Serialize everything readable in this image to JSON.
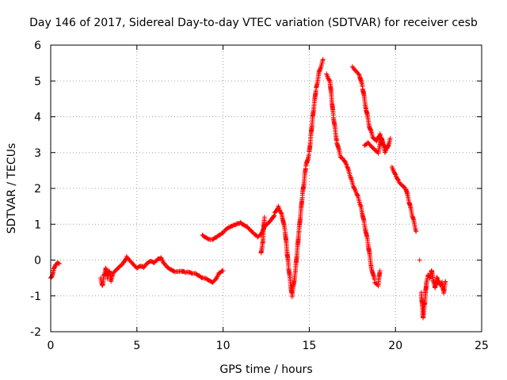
{
  "chart_data": {
    "type": "scatter",
    "title": "Day 146 of 2017, Sidereal Day-to-day VTEC variation (SDTVAR) for receiver cesb",
    "xlabel": "GPS time / hours",
    "ylabel": "SDTVAR / TECUs",
    "xlim": [
      0,
      25
    ],
    "ylim": [
      -2,
      6
    ],
    "xticks": [
      0,
      5,
      10,
      15,
      20,
      25
    ],
    "yticks": [
      -2,
      -1,
      0,
      1,
      2,
      3,
      4,
      5,
      6
    ],
    "grid": true,
    "legend": "none",
    "marker": "plus",
    "series_color": "#ff0000",
    "series": [
      {
        "segments": [
          {
            "x": [
              0.0,
              0.1,
              0.2,
              0.3,
              0.4,
              0.5
            ],
            "y": [
              -0.5,
              -0.4,
              -0.2,
              -0.1,
              -0.05,
              -0.1
            ]
          },
          {
            "x": [
              2.9,
              3.0,
              3.1,
              3.2,
              3.3,
              3.4,
              3.5,
              3.6,
              3.8,
              4.0,
              4.2,
              4.4,
              4.6,
              4.8,
              5.0,
              5.2,
              5.4,
              5.6,
              5.8,
              6.0,
              6.2,
              6.4,
              6.6,
              6.8,
              7.0,
              7.2,
              7.4,
              7.6,
              7.8,
              8.0,
              8.2,
              8.4,
              8.6,
              8.8,
              9.0,
              9.2,
              9.4,
              9.6,
              9.8,
              10.0
            ],
            "y": [
              -0.5,
              -0.7,
              -0.4,
              -0.2,
              -0.5,
              -0.3,
              -0.6,
              -0.4,
              -0.3,
              -0.2,
              -0.1,
              0.1,
              0.0,
              -0.1,
              -0.2,
              -0.15,
              -0.2,
              -0.1,
              -0.05,
              -0.1,
              0.0,
              0.05,
              -0.1,
              -0.2,
              -0.25,
              -0.3,
              -0.3,
              -0.3,
              -0.35,
              -0.35,
              -0.4,
              -0.4,
              -0.45,
              -0.5,
              -0.5,
              -0.55,
              -0.6,
              -0.5,
              -0.35,
              -0.3
            ]
          },
          {
            "x": [
              8.8,
              9.0,
              9.2,
              9.4,
              9.6,
              9.8,
              10.0,
              10.2,
              10.4,
              10.6,
              10.8,
              11.0,
              11.2,
              11.4,
              11.6,
              11.8,
              12.0,
              12.2,
              12.4,
              12.6,
              12.8,
              13.0,
              13.2,
              13.4,
              13.6,
              13.8,
              14.0,
              14.2,
              14.4,
              14.6,
              14.8,
              15.0,
              15.2,
              15.4,
              15.6,
              15.8
            ],
            "y": [
              0.7,
              0.65,
              0.6,
              0.6,
              0.65,
              0.7,
              0.75,
              0.85,
              0.9,
              0.95,
              1.0,
              1.05,
              1.0,
              0.95,
              0.85,
              0.75,
              0.65,
              0.7,
              0.9,
              1.0,
              1.1,
              1.3,
              1.5,
              1.3,
              0.8,
              -0.2,
              -1.0,
              -0.3,
              0.8,
              1.8,
              2.6,
              3.0,
              4.0,
              4.8,
              5.3,
              5.6
            ]
          },
          {
            "x": [
              12.2,
              12.3,
              12.4
            ],
            "y": [
              0.2,
              0.5,
              1.2
            ]
          },
          {
            "x": [
              16.0,
              16.2,
              16.4,
              16.6,
              16.8,
              17.0,
              17.2,
              17.4,
              17.6,
              17.8,
              18.0,
              18.2,
              18.4,
              18.6,
              18.8,
              19.0,
              19.1
            ],
            "y": [
              5.2,
              5.0,
              4.0,
              3.3,
              2.9,
              2.8,
              2.6,
              2.3,
              2.0,
              1.8,
              1.5,
              1.0,
              0.5,
              -0.2,
              -0.6,
              -0.7,
              -0.3
            ]
          },
          {
            "x": [
              17.5,
              17.7,
              17.9,
              18.1,
              18.3,
              18.5,
              18.7,
              18.9,
              19.1,
              19.3,
              19.5,
              19.7
            ],
            "y": [
              5.4,
              5.3,
              5.2,
              4.8,
              4.2,
              3.7,
              3.4,
              3.3,
              3.5,
              3.2,
              3.1,
              3.4
            ]
          },
          {
            "x": [
              18.2,
              18.4,
              18.6,
              18.8,
              19.0,
              19.2,
              19.4,
              19.6
            ],
            "y": [
              3.2,
              3.3,
              3.2,
              3.1,
              3.0,
              3.4,
              3.0,
              3.2
            ]
          },
          {
            "x": [
              19.8,
              20.0,
              20.2,
              20.4,
              20.6,
              20.8,
              21.0,
              21.2
            ],
            "y": [
              2.6,
              2.4,
              2.2,
              2.1,
              2.0,
              1.6,
              1.2,
              0.8
            ]
          },
          {
            "x": [
              21.5,
              21.6,
              21.7,
              21.8,
              21.9,
              22.0,
              22.1,
              22.2,
              22.3,
              22.4,
              22.5,
              22.6,
              22.7,
              22.8,
              22.9
            ],
            "y": [
              -0.9,
              -1.6,
              -1.2,
              -0.6,
              -0.4,
              -0.5,
              -0.3,
              -0.6,
              -0.8,
              -0.5,
              -0.6,
              -0.7,
              -0.6,
              -0.9,
              -0.6
            ]
          },
          {
            "x": [
              21.4
            ],
            "y": [
              0.0
            ]
          }
        ]
      }
    ]
  }
}
